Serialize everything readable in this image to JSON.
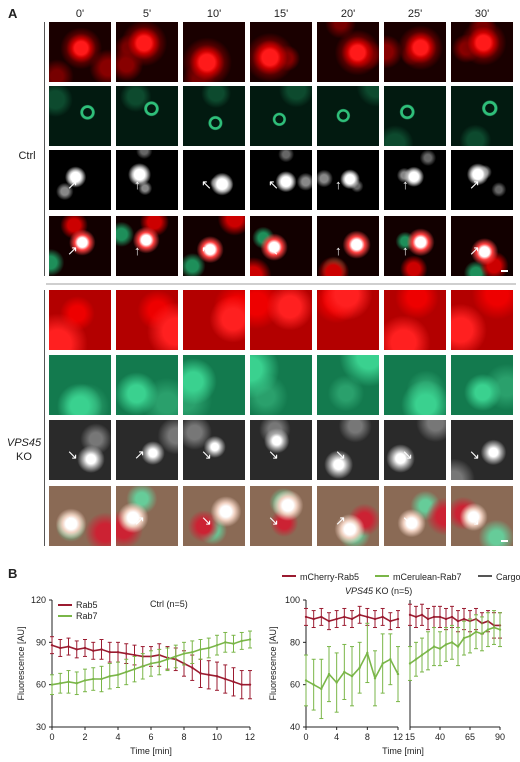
{
  "panel_a": {
    "letter": "A",
    "time_points": [
      "0'",
      "5'",
      "10'",
      "15'",
      "20'",
      "25'",
      "30'"
    ],
    "groups": [
      {
        "label": "Ctrl",
        "label_italic": "",
        "label_rest": "Ctrl",
        "rows": [
          "red",
          "green",
          "gray",
          "merge"
        ],
        "arrows": [
          {
            "row": 2,
            "tile": 0,
            "glyph": "↗"
          },
          {
            "row": 2,
            "tile": 1,
            "glyph": "↑"
          },
          {
            "row": 2,
            "tile": 2,
            "glyph": "↖"
          },
          {
            "row": 2,
            "tile": 3,
            "glyph": "↖"
          },
          {
            "row": 2,
            "tile": 4,
            "glyph": "↑"
          },
          {
            "row": 2,
            "tile": 5,
            "glyph": "↑"
          },
          {
            "row": 2,
            "tile": 6,
            "glyph": "↗"
          },
          {
            "row": 3,
            "tile": 0,
            "glyph": "↗"
          },
          {
            "row": 3,
            "tile": 1,
            "glyph": "↑"
          },
          {
            "row": 3,
            "tile": 2,
            "glyph": "↖"
          },
          {
            "row": 3,
            "tile": 3,
            "glyph": "↖"
          },
          {
            "row": 3,
            "tile": 4,
            "glyph": "↑"
          },
          {
            "row": 3,
            "tile": 5,
            "glyph": "↑"
          },
          {
            "row": 3,
            "tile": 6,
            "glyph": "↗"
          }
        ]
      },
      {
        "label": "VPS45 KO",
        "label_italic": "VPS45",
        "label_rest": "KO",
        "rows": [
          "red",
          "green",
          "gray",
          "merge"
        ],
        "arrows": [
          {
            "row": 2,
            "tile": 0,
            "glyph": "↘"
          },
          {
            "row": 2,
            "tile": 1,
            "glyph": "↗"
          },
          {
            "row": 2,
            "tile": 2,
            "glyph": "↘"
          },
          {
            "row": 2,
            "tile": 3,
            "glyph": "↘"
          },
          {
            "row": 2,
            "tile": 4,
            "glyph": "↘"
          },
          {
            "row": 2,
            "tile": 5,
            "glyph": "↘"
          },
          {
            "row": 2,
            "tile": 6,
            "glyph": "↘"
          },
          {
            "row": 3,
            "tile": 0,
            "glyph": "↘"
          },
          {
            "row": 3,
            "tile": 1,
            "glyph": "↗"
          },
          {
            "row": 3,
            "tile": 2,
            "glyph": "↘"
          },
          {
            "row": 3,
            "tile": 3,
            "glyph": "↘"
          },
          {
            "row": 3,
            "tile": 4,
            "glyph": "↗"
          },
          {
            "row": 3,
            "tile": 5,
            "glyph": "↘"
          },
          {
            "row": 3,
            "tile": 6,
            "glyph": "↘"
          }
        ]
      }
    ]
  },
  "panel_b": {
    "letter": "B",
    "top_legend": [
      {
        "label": "mCherry-Rab5",
        "color": "#9b1b30"
      },
      {
        "label": "mCerulean-Rab7",
        "color": "#7ab648"
      },
      {
        "label": "Cargo",
        "color": "#555555"
      }
    ]
  },
  "chart_data": [
    {
      "type": "line",
      "title": "Ctrl (n=5)",
      "xlabel": "Time [min]",
      "ylabel": "Fluorescence [AU]",
      "xlim": [
        0,
        12
      ],
      "ylim": [
        30,
        120
      ],
      "x_ticks": [
        "0",
        "2",
        "4",
        "6",
        "8",
        "10",
        "12"
      ],
      "y_ticks": [
        "30",
        "60",
        "90",
        "120"
      ],
      "legend": "top-left",
      "series": [
        {
          "name": "Rab5",
          "color": "#9b1b30",
          "x": [
            0,
            0.5,
            1,
            1.5,
            2,
            2.5,
            3,
            3.5,
            4,
            4.5,
            5,
            5.5,
            6,
            6.5,
            7,
            7.5,
            8,
            8.5,
            9,
            9.5,
            10,
            10.5,
            11,
            11.5,
            12
          ],
          "values": [
            88,
            86,
            87,
            85,
            86,
            84,
            85,
            83,
            83,
            82,
            81,
            80,
            80,
            81,
            79,
            78,
            75,
            72,
            68,
            67,
            66,
            64,
            62,
            60,
            60
          ],
          "err": [
            6,
            6,
            6,
            6,
            6,
            6,
            7,
            7,
            7,
            7,
            7,
            7,
            7,
            8,
            8,
            8,
            9,
            9,
            10,
            10,
            10,
            10,
            10,
            10,
            10
          ]
        },
        {
          "name": "Rab7",
          "color": "#7ab648",
          "x": [
            0,
            0.5,
            1,
            1.5,
            2,
            2.5,
            3,
            3.5,
            4,
            4.5,
            5,
            5.5,
            6,
            6.5,
            7,
            7.5,
            8,
            8.5,
            9,
            9.5,
            10,
            10.5,
            11,
            11.5,
            12
          ],
          "values": [
            60,
            61,
            62,
            61,
            63,
            64,
            64,
            66,
            67,
            69,
            71,
            73,
            75,
            76,
            78,
            80,
            82,
            83,
            85,
            86,
            88,
            90,
            89,
            91,
            92
          ],
          "err": [
            7,
            7,
            8,
            8,
            8,
            8,
            9,
            9,
            9,
            9,
            9,
            9,
            9,
            9,
            8,
            8,
            8,
            8,
            7,
            7,
            7,
            7,
            6,
            6,
            6
          ]
        }
      ]
    },
    {
      "type": "line",
      "title": "VPS45 KO (n=5)",
      "title_italic": "VPS45",
      "title_rest": "KO (n=5)",
      "xlabel": "Time [min]",
      "ylabel": "Fluorescence [AU]",
      "ylim": [
        40,
        100
      ],
      "y_ticks": [
        "40",
        "60",
        "80",
        "100"
      ],
      "broken_x_axis": true,
      "segments": [
        {
          "xlim": [
            0,
            12
          ],
          "x_ticks": [
            "0",
            "4",
            "8",
            "12"
          ]
        },
        {
          "xlim": [
            15,
            90
          ],
          "x_ticks": [
            "15",
            "40",
            "65",
            "90"
          ]
        }
      ],
      "series": [
        {
          "name": "mCherry-Rab5",
          "color": "#9b1b30",
          "segment1": {
            "x": [
              0,
              1,
              2,
              3,
              4,
              5,
              6,
              7,
              8,
              9,
              10,
              11,
              12
            ],
            "values": [
              92,
              91,
              92,
              90,
              91,
              92,
              91,
              93,
              92,
              91,
              92,
              90,
              91
            ],
            "err": [
              4,
              4,
              4,
              4,
              4,
              4,
              4,
              4,
              4,
              4,
              4,
              4,
              4
            ]
          },
          "segment2": {
            "x": [
              15,
              20,
              25,
              30,
              35,
              40,
              45,
              50,
              55,
              60,
              65,
              70,
              75,
              80,
              85,
              90
            ],
            "values": [
              93,
              92,
              93,
              91,
              92,
              92,
              91,
              92,
              90,
              91,
              90,
              91,
              89,
              90,
              88,
              88
            ],
            "err": [
              5,
              5,
              5,
              5,
              5,
              5,
              5,
              5,
              5,
              5,
              5,
              5,
              5,
              5,
              6,
              6
            ]
          }
        },
        {
          "name": "mCerulean-Rab7",
          "color": "#7ab648",
          "segment1": {
            "x": [
              0,
              1,
              2,
              3,
              4,
              5,
              6,
              7,
              8,
              9,
              10,
              11,
              12
            ],
            "values": [
              62,
              60,
              58,
              65,
              61,
              66,
              64,
              68,
              75,
              63,
              70,
              72,
              65
            ],
            "err": [
              12,
              12,
              14,
              13,
              14,
              13,
              14,
              12,
              14,
              13,
              14,
              12,
              13
            ]
          },
          "segment2": {
            "x": [
              15,
              20,
              25,
              30,
              35,
              40,
              45,
              50,
              55,
              60,
              65,
              70,
              75,
              80,
              85,
              90
            ],
            "values": [
              70,
              72,
              74,
              76,
              78,
              77,
              79,
              80,
              78,
              82,
              83,
              85,
              84,
              86,
              87,
              86
            ],
            "err": [
              8,
              8,
              8,
              9,
              9,
              8,
              8,
              8,
              9,
              8,
              8,
              8,
              8,
              8,
              8,
              8
            ]
          }
        }
      ]
    }
  ]
}
